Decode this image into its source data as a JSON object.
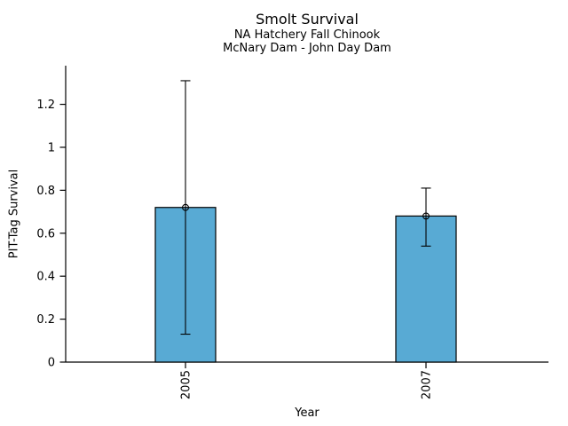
{
  "chart_data": {
    "type": "bar",
    "title": "Smolt Survival",
    "subtitle_lines": [
      "NA Hatchery Fall Chinook",
      "McNary Dam - John Day Dam"
    ],
    "xlabel": "Year",
    "ylabel": "PIT-Tag Survival",
    "categories": [
      "2005",
      "2007"
    ],
    "values": [
      0.72,
      0.68
    ],
    "ci_low": [
      0.13,
      0.54
    ],
    "ci_high": [
      1.31,
      0.81
    ],
    "yticks": [
      0,
      0.2,
      0.4,
      0.6,
      0.8,
      1,
      1.2
    ],
    "ylim": [
      0,
      1.38
    ],
    "grid": false,
    "legend": "none",
    "marker": "open-circle",
    "error_bar_style": "capped-whisker",
    "colors": {
      "bar_fill": "#58AAD4",
      "bar_edge": "#000000",
      "error_bar": "#000000",
      "axis": "#000000",
      "text": "#000000",
      "background": "#FFFFFF"
    }
  }
}
